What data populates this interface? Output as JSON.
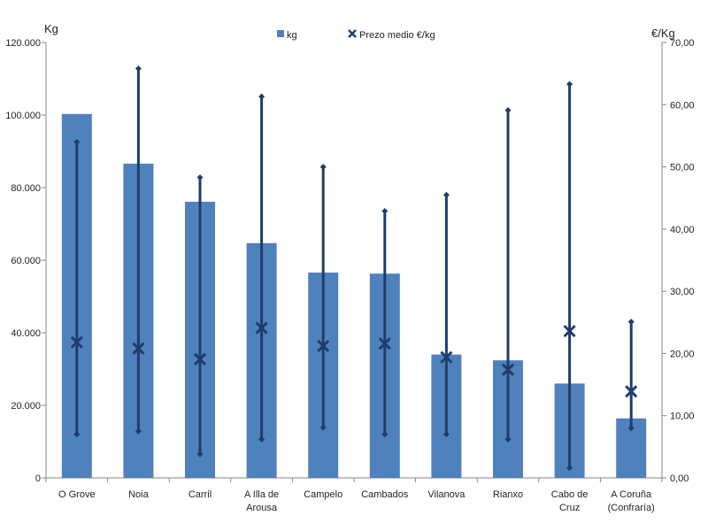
{
  "chart_data": {
    "type": "bar",
    "categories": [
      "O Grove",
      "Noia",
      "Carril",
      "A Illa de Arousa",
      "Campelo",
      "Cambados",
      "Vilanova",
      "Rianxo",
      "Cabo de Cruz",
      "A Coruña (Confraría)"
    ],
    "category_lines": [
      [
        "O Grove"
      ],
      [
        "Noia"
      ],
      [
        "Carril"
      ],
      [
        "A Illa de",
        "Arousa"
      ],
      [
        "Campelo"
      ],
      [
        "Cambados"
      ],
      [
        "Vilanova"
      ],
      [
        "Rianxo"
      ],
      [
        "Cabo de",
        "Cruz"
      ],
      [
        "A Coruña",
        "(Confraría)"
      ]
    ],
    "series": [
      {
        "name": "kg",
        "type": "bar",
        "axis": "left",
        "color": "#4F81BD",
        "values": [
          100300,
          86600,
          76100,
          64700,
          56600,
          56300,
          34000,
          32400,
          26000,
          16400
        ]
      },
      {
        "name": "Prezo medio €/kg",
        "type": "range-marker",
        "axis": "right",
        "color": "#1F3D6B",
        "mean": [
          21.8,
          20.8,
          19.1,
          24.1,
          21.2,
          21.6,
          19.4,
          17.4,
          23.6,
          13.9
        ],
        "max": [
          54.0,
          65.8,
          48.3,
          61.3,
          50.0,
          42.9,
          45.5,
          59.1,
          63.3,
          25.1
        ],
        "min": [
          7.0,
          7.5,
          3.8,
          6.2,
          8.1,
          7.0,
          7.0,
          6.2,
          1.6,
          8.0
        ]
      }
    ],
    "y_left": {
      "label": "Kg",
      "range": [
        0,
        120000
      ],
      "ticks": [
        "0",
        "20.000",
        "40.000",
        "60.000",
        "80.000",
        "100.000",
        "120.000"
      ],
      "tick_values": [
        0,
        20000,
        40000,
        60000,
        80000,
        100000,
        120000
      ]
    },
    "y_right": {
      "label": "€/Kg",
      "range": [
        0,
        70
      ],
      "ticks": [
        "0,00",
        "10,00",
        "20,00",
        "30,00",
        "40,00",
        "50,00",
        "60,00",
        "70,00"
      ],
      "tick_values": [
        0,
        10,
        20,
        30,
        40,
        50,
        60,
        70
      ]
    },
    "legend": {
      "position": "top-center",
      "items": [
        {
          "label": "kg",
          "symbol": "square"
        },
        {
          "label": "Prezo medio €/kg",
          "symbol": "x"
        }
      ]
    },
    "grid": false
  }
}
